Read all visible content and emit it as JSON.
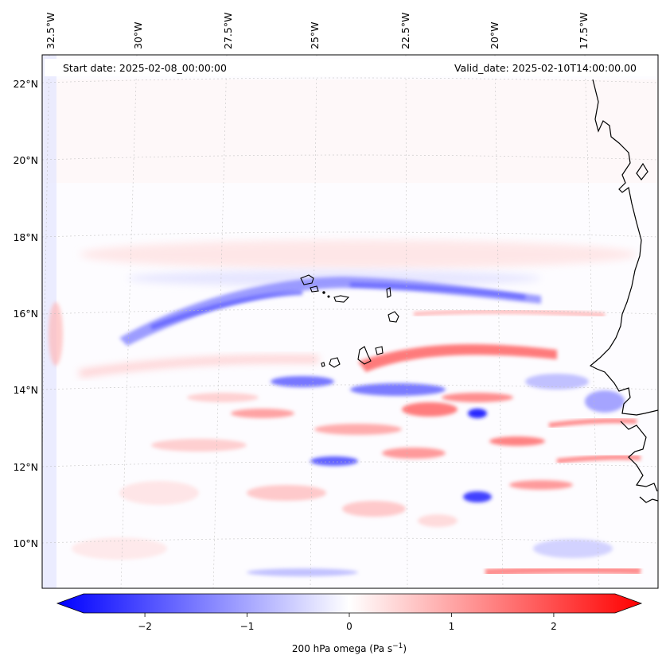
{
  "map": {
    "start_date": "Start date: 2025-02-08_00:00:00",
    "valid_date": "Valid_date: 2025-02-10T14:00:00.00",
    "lon_labels": [
      "32.5°W",
      "30°W",
      "27.5°W",
      "25°W",
      "22.5°W",
      "20°W",
      "17.5°W"
    ],
    "lat_labels": [
      "22°N",
      "20°N",
      "18°N",
      "16°N",
      "14°N",
      "12°N",
      "10°N"
    ],
    "field": "200 hPa omega"
  },
  "colorbar": {
    "ticks": [
      "−2",
      "−1",
      "0",
      "1",
      "2"
    ],
    "tick_values": [
      -2,
      -1,
      0,
      1,
      2
    ],
    "range": [
      -2.6,
      2.6
    ],
    "label_main": "200 hPa omega (Pa s",
    "label_sup": "−1",
    "label_end": ")",
    "colors": {
      "min": "#0000ff",
      "mid": "#ffffff",
      "max": "#ff0000"
    }
  }
}
